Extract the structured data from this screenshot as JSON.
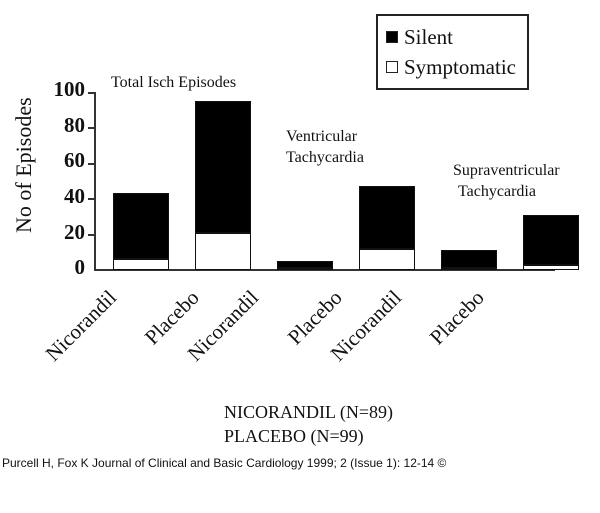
{
  "chart_data": {
    "type": "bar",
    "stacked": true,
    "title": "",
    "ylabel": "No of Episodes",
    "xlabel": "",
    "ylim": [
      0,
      100
    ],
    "yticks": [
      0,
      20,
      40,
      60,
      80,
      100
    ],
    "grid": false,
    "legend_position": "top-right",
    "groups": [
      {
        "label": "Total Isch Episodes",
        "categories": [
          "Nicorandil",
          "Placebo"
        ]
      },
      {
        "label": "Ventricular Tachycardia",
        "categories": [
          "Nicorandil",
          "Placebo"
        ]
      },
      {
        "label": "Supraventricular Tachycardia",
        "categories": [
          "Nicorandil",
          "Placebo"
        ]
      }
    ],
    "categories": [
      "Nicorandil",
      "Placebo",
      "Nicorandil",
      "Placebo",
      "Nicorandil",
      "Placebo"
    ],
    "series": [
      {
        "name": "Symptomatic",
        "color": "#ffffff",
        "values": [
          6,
          21,
          1,
          12,
          1,
          3
        ]
      },
      {
        "name": "Silent",
        "color": "#000000",
        "values": [
          37,
          74,
          4,
          35,
          10,
          28
        ]
      }
    ],
    "totals": [
      43,
      95,
      5,
      47,
      11,
      31
    ],
    "annotations": [
      "NICORANDIL (N=89)",
      "PLACEBO (N=99)"
    ]
  },
  "axis": {
    "ylabel": "No of Episodes",
    "ticks": [
      "100",
      "80",
      "60",
      "40",
      "20",
      "0"
    ]
  },
  "legend": {
    "items": [
      {
        "label": "Silent",
        "color": "#000000"
      },
      {
        "label": "Symptomatic",
        "color": "#ffffff"
      }
    ]
  },
  "groups": {
    "g1": {
      "line1": "Total Isch Episodes"
    },
    "g2": {
      "line1": "Ventricular",
      "line2": "Tachycardia"
    },
    "g3": {
      "line1": "Supraventricular",
      "line2": "Tachycardia"
    }
  },
  "xcats": [
    "Nicorandil",
    "Placebo",
    "Nicorandil",
    "Placebo",
    "Nicorandil",
    "Placebo"
  ],
  "footnote": {
    "line1": "NICORANDIL (N=89)",
    "line2": "PLACEBO (N=99)"
  },
  "citation": "Purcell H, Fox K Journal of Clinical and Basic Cardiology 1999; 2 (Issue 1): 12-14 ©"
}
